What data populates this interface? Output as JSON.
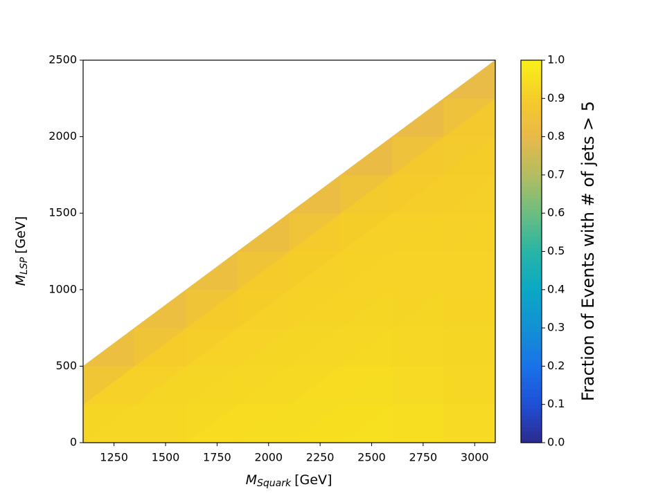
{
  "chart_data": {
    "type": "contour",
    "xlabel": {
      "symbol": "M",
      "subscript": "Squark",
      "unit": "[GeV]"
    },
    "ylabel": {
      "symbol": "M",
      "subscript": "LSP",
      "unit": "[GeV]"
    },
    "x": [
      1100,
      1350,
      1600,
      1850,
      2100,
      2350,
      2600,
      2850,
      3100
    ],
    "y": [
      0,
      250,
      500,
      750,
      1000,
      1250,
      1500,
      1750,
      2000,
      2250,
      2500
    ],
    "z": [
      [
        0.93,
        0.93,
        0.94,
        0.95,
        0.95,
        0.96,
        0.96,
        0.95,
        0.94
      ],
      [
        0.92,
        0.93,
        0.93,
        0.94,
        0.94,
        0.95,
        0.95,
        0.94,
        0.93
      ],
      [
        0.8,
        0.89,
        0.92,
        0.93,
        0.93,
        0.94,
        0.94,
        0.93,
        0.93
      ],
      [
        null,
        0.8,
        0.89,
        0.91,
        0.92,
        0.93,
        0.93,
        0.93,
        0.92
      ],
      [
        null,
        null,
        0.8,
        0.89,
        0.91,
        0.92,
        0.92,
        0.92,
        0.92
      ],
      [
        null,
        null,
        null,
        0.8,
        0.89,
        0.91,
        0.92,
        0.92,
        0.92
      ],
      [
        null,
        null,
        null,
        null,
        0.79,
        0.89,
        0.91,
        0.91,
        0.91
      ],
      [
        null,
        null,
        null,
        null,
        null,
        0.79,
        0.88,
        0.9,
        0.91
      ],
      [
        null,
        null,
        null,
        null,
        null,
        null,
        0.78,
        0.88,
        0.9
      ],
      [
        null,
        null,
        null,
        null,
        null,
        null,
        null,
        0.78,
        0.88
      ],
      [
        null,
        null,
        null,
        null,
        null,
        null,
        null,
        null,
        0.77
      ]
    ],
    "xlim": [
      1100,
      3100
    ],
    "xticks": [
      1250,
      1500,
      1750,
      2000,
      2250,
      2500,
      2750,
      3000
    ],
    "ylim": [
      0,
      2500
    ],
    "yticks": [
      0,
      500,
      1000,
      1500,
      2000,
      2500
    ],
    "colorbar": {
      "label": "Fraction of Events with # of jets > 5",
      "clim": [
        0,
        1
      ],
      "ticks": [
        {
          "value": 0,
          "label": "0.0"
        },
        {
          "value": 0.1,
          "label": "0.1"
        },
        {
          "value": 0.2,
          "label": "0.2"
        },
        {
          "value": 0.3,
          "label": "0.3"
        },
        {
          "value": 0.4,
          "label": "0.4"
        },
        {
          "value": 0.5,
          "label": "0.5"
        },
        {
          "value": 0.6,
          "label": "0.6"
        },
        {
          "value": 0.7,
          "label": "0.7"
        },
        {
          "value": 0.8,
          "label": "0.8"
        },
        {
          "value": 0.9,
          "label": "0.9"
        },
        {
          "value": 1,
          "label": "1.0"
        }
      ],
      "colormap": [
        "#2c2a8c",
        "#1f4fd6",
        "#1a72e8",
        "#1290d4",
        "#0aa8c5",
        "#27b5a6",
        "#6cbd80",
        "#b3bd62",
        "#e8b94a",
        "#f5cc2a",
        "#f9f018"
      ]
    }
  }
}
